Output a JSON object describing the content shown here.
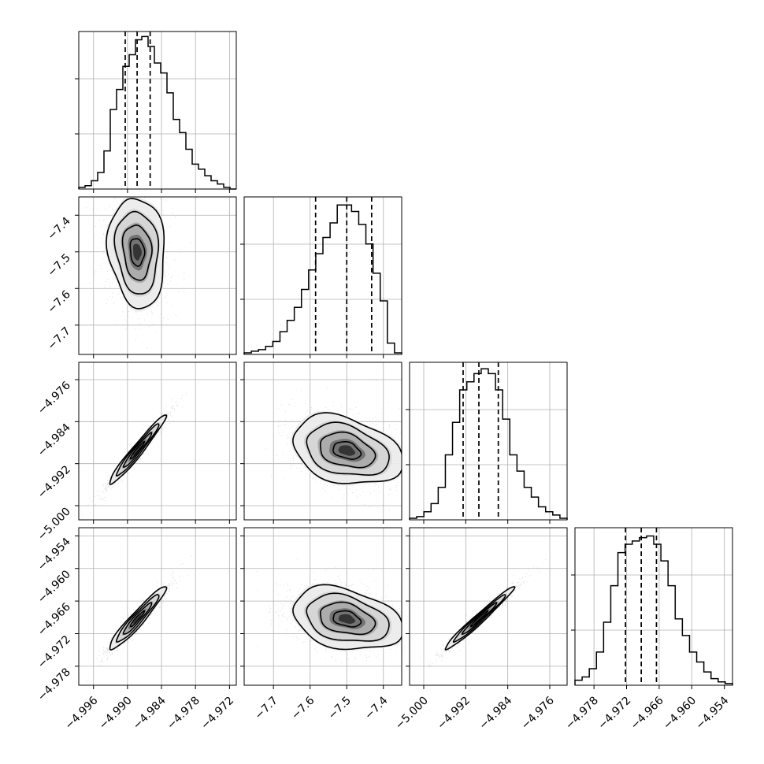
{
  "chart_data": {
    "type": "corner",
    "title": "",
    "grid": true,
    "parameters": [
      {
        "index": 0,
        "xticks": [
          -4.996,
          -4.99,
          -4.984,
          -4.978,
          -4.972
        ],
        "xtick_labels": [
          "−4.996",
          "−4.990",
          "−4.984",
          "−4.978",
          "−4.972"
        ],
        "range": [
          -4.9986,
          -4.9708
        ],
        "median": -4.9883,
        "q16": -4.9904,
        "q84": -4.986,
        "sigma": 0.0025,
        "hist": [
          1,
          2,
          5,
          10,
          23,
          48,
          60,
          74,
          81,
          90,
          92,
          86,
          76,
          70,
          58,
          42,
          34,
          24,
          15,
          12,
          8,
          5,
          3,
          1,
          0
        ],
        "hist_ymax": 95
      },
      {
        "index": 1,
        "xticks": [
          -7.7,
          -7.6,
          -7.5,
          -7.4
        ],
        "xtick_labels": [
          "−7.7",
          "−7.6",
          "−7.5",
          "−7.4"
        ],
        "yticks": [
          -7.4,
          -7.5,
          -7.6,
          -7.7
        ],
        "ytick_labels": [
          "−7.4",
          "−7.5",
          "−7.6",
          "−7.7"
        ],
        "range": [
          -7.78,
          -7.35
        ],
        "median": -7.5,
        "q16": -7.585,
        "q84": -7.432,
        "sigma": 0.075,
        "hist": [
          1,
          2,
          3,
          5,
          8,
          14,
          21,
          29,
          40,
          52,
          62,
          72,
          81,
          92,
          92,
          88,
          80,
          68,
          50,
          33,
          7,
          1
        ],
        "hist_ymax": 97
      },
      {
        "index": 2,
        "xticks": [
          -5.0,
          -4.992,
          -4.984,
          -4.976
        ],
        "xtick_labels": [
          "−5.000",
          "−4.992",
          "−4.984",
          "−4.976"
        ],
        "yticks": [
          -4.976,
          -4.984,
          -4.992,
          -5.0
        ],
        "ytick_labels": [
          "−4.976",
          "−4.984",
          "−4.992",
          "−5.000"
        ],
        "range": [
          -5.0027,
          -4.9727
        ],
        "median": -4.9895,
        "q16": -4.9925,
        "q84": -4.9858,
        "sigma": 0.0033,
        "hist": [
          1,
          2,
          5,
          10,
          20,
          40,
          60,
          80,
          85,
          90,
          93,
          90,
          80,
          62,
          40,
          30,
          20,
          14,
          8,
          5,
          3,
          1
        ],
        "hist_ymax": 97
      },
      {
        "index": 3,
        "xticks": [
          -4.978,
          -4.972,
          -4.966,
          -4.96,
          -4.954
        ],
        "xtick_labels": [
          "−4.978",
          "−4.972",
          "−4.966",
          "−4.960",
          "−4.954"
        ],
        "yticks": [
          -4.954,
          -4.96,
          -4.966,
          -4.972,
          -4.978
        ],
        "ytick_labels": [
          "−4.954",
          "−4.960",
          "−4.966",
          "−4.972",
          "−4.978"
        ],
        "range": [
          -4.9815,
          -4.9525
        ],
        "median": -4.9693,
        "q16": -4.9722,
        "q84": -4.9665,
        "sigma": 0.0029,
        "hist": [
          3,
          5,
          10,
          20,
          38,
          60,
          80,
          85,
          87,
          89,
          90,
          85,
          75,
          60,
          40,
          30,
          20,
          14,
          8,
          4,
          2,
          1
        ],
        "hist_ymax": 95
      }
    ],
    "correlations": {
      "1-0": -0.12,
      "2-0": 0.97,
      "2-1": -0.3,
      "3-0": 0.95,
      "3-1": -0.3,
      "3-2": 0.98
    }
  }
}
